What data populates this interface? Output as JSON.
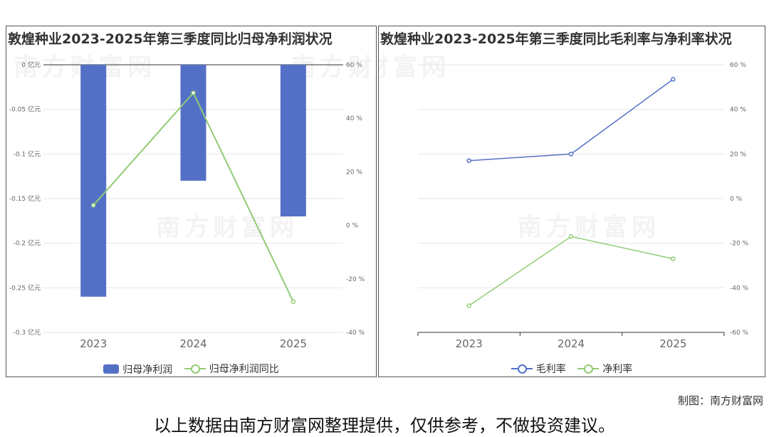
{
  "watermark": "南方财富网",
  "credit": "制图：南方财富网",
  "disclaimer": "以上数据由南方财富网整理提供，仅供参考，不做投资建议。",
  "chart_data": [
    {
      "type": "bar",
      "title": "敦煌种业2023-2025年第三季度同比归母净利润状况",
      "categories": [
        "2023",
        "2024",
        "2025"
      ],
      "series": [
        {
          "name": "归母净利润",
          "type": "bar",
          "axis": "left",
          "color": "#5470c6",
          "values": [
            -0.26,
            -0.13,
            -0.17
          ]
        },
        {
          "name": "归母净利润同比",
          "type": "line",
          "axis": "right",
          "color": "#91cc75",
          "values": [
            7.5,
            49.5,
            -28.5
          ]
        }
      ],
      "left_axis": {
        "min": -0.3,
        "max": 0,
        "ticks": [
          0,
          -0.05,
          -0.1,
          -0.15,
          -0.2,
          -0.25,
          -0.3
        ],
        "tick_labels": [
          "0 亿元",
          "-0.05 亿元",
          "-0.1 亿元",
          "-0.15 亿元",
          "-0.2 亿元",
          "-0.25 亿元",
          "-0.3 亿元"
        ]
      },
      "right_axis": {
        "min": -40,
        "max": 60,
        "ticks": [
          60,
          40,
          20,
          0,
          -20,
          -40
        ],
        "tick_labels": [
          "60 %",
          "40 %",
          "20 %",
          "0 %",
          "-20 %",
          "-40 %"
        ]
      },
      "legend_position": "bottom-center",
      "grid": true
    },
    {
      "type": "line",
      "title": "敦煌种业2023-2025年第三季度同比毛利率与净利率状况",
      "categories": [
        "2023",
        "2024",
        "2025"
      ],
      "series": [
        {
          "name": "毛利率",
          "color": "#5470c6",
          "values": [
            17,
            20,
            53.5
          ]
        },
        {
          "name": "净利率",
          "color": "#91cc75",
          "values": [
            -48,
            -17,
            -27
          ]
        }
      ],
      "right_axis": {
        "min": -60,
        "max": 60,
        "ticks": [
          60,
          40,
          20,
          0,
          -20,
          -40,
          -60
        ],
        "tick_labels": [
          "60 %",
          "40 %",
          "20 %",
          "0 %",
          "-20 %",
          "-40 %",
          "-60 %"
        ]
      },
      "legend_position": "bottom-center",
      "grid": true
    }
  ]
}
